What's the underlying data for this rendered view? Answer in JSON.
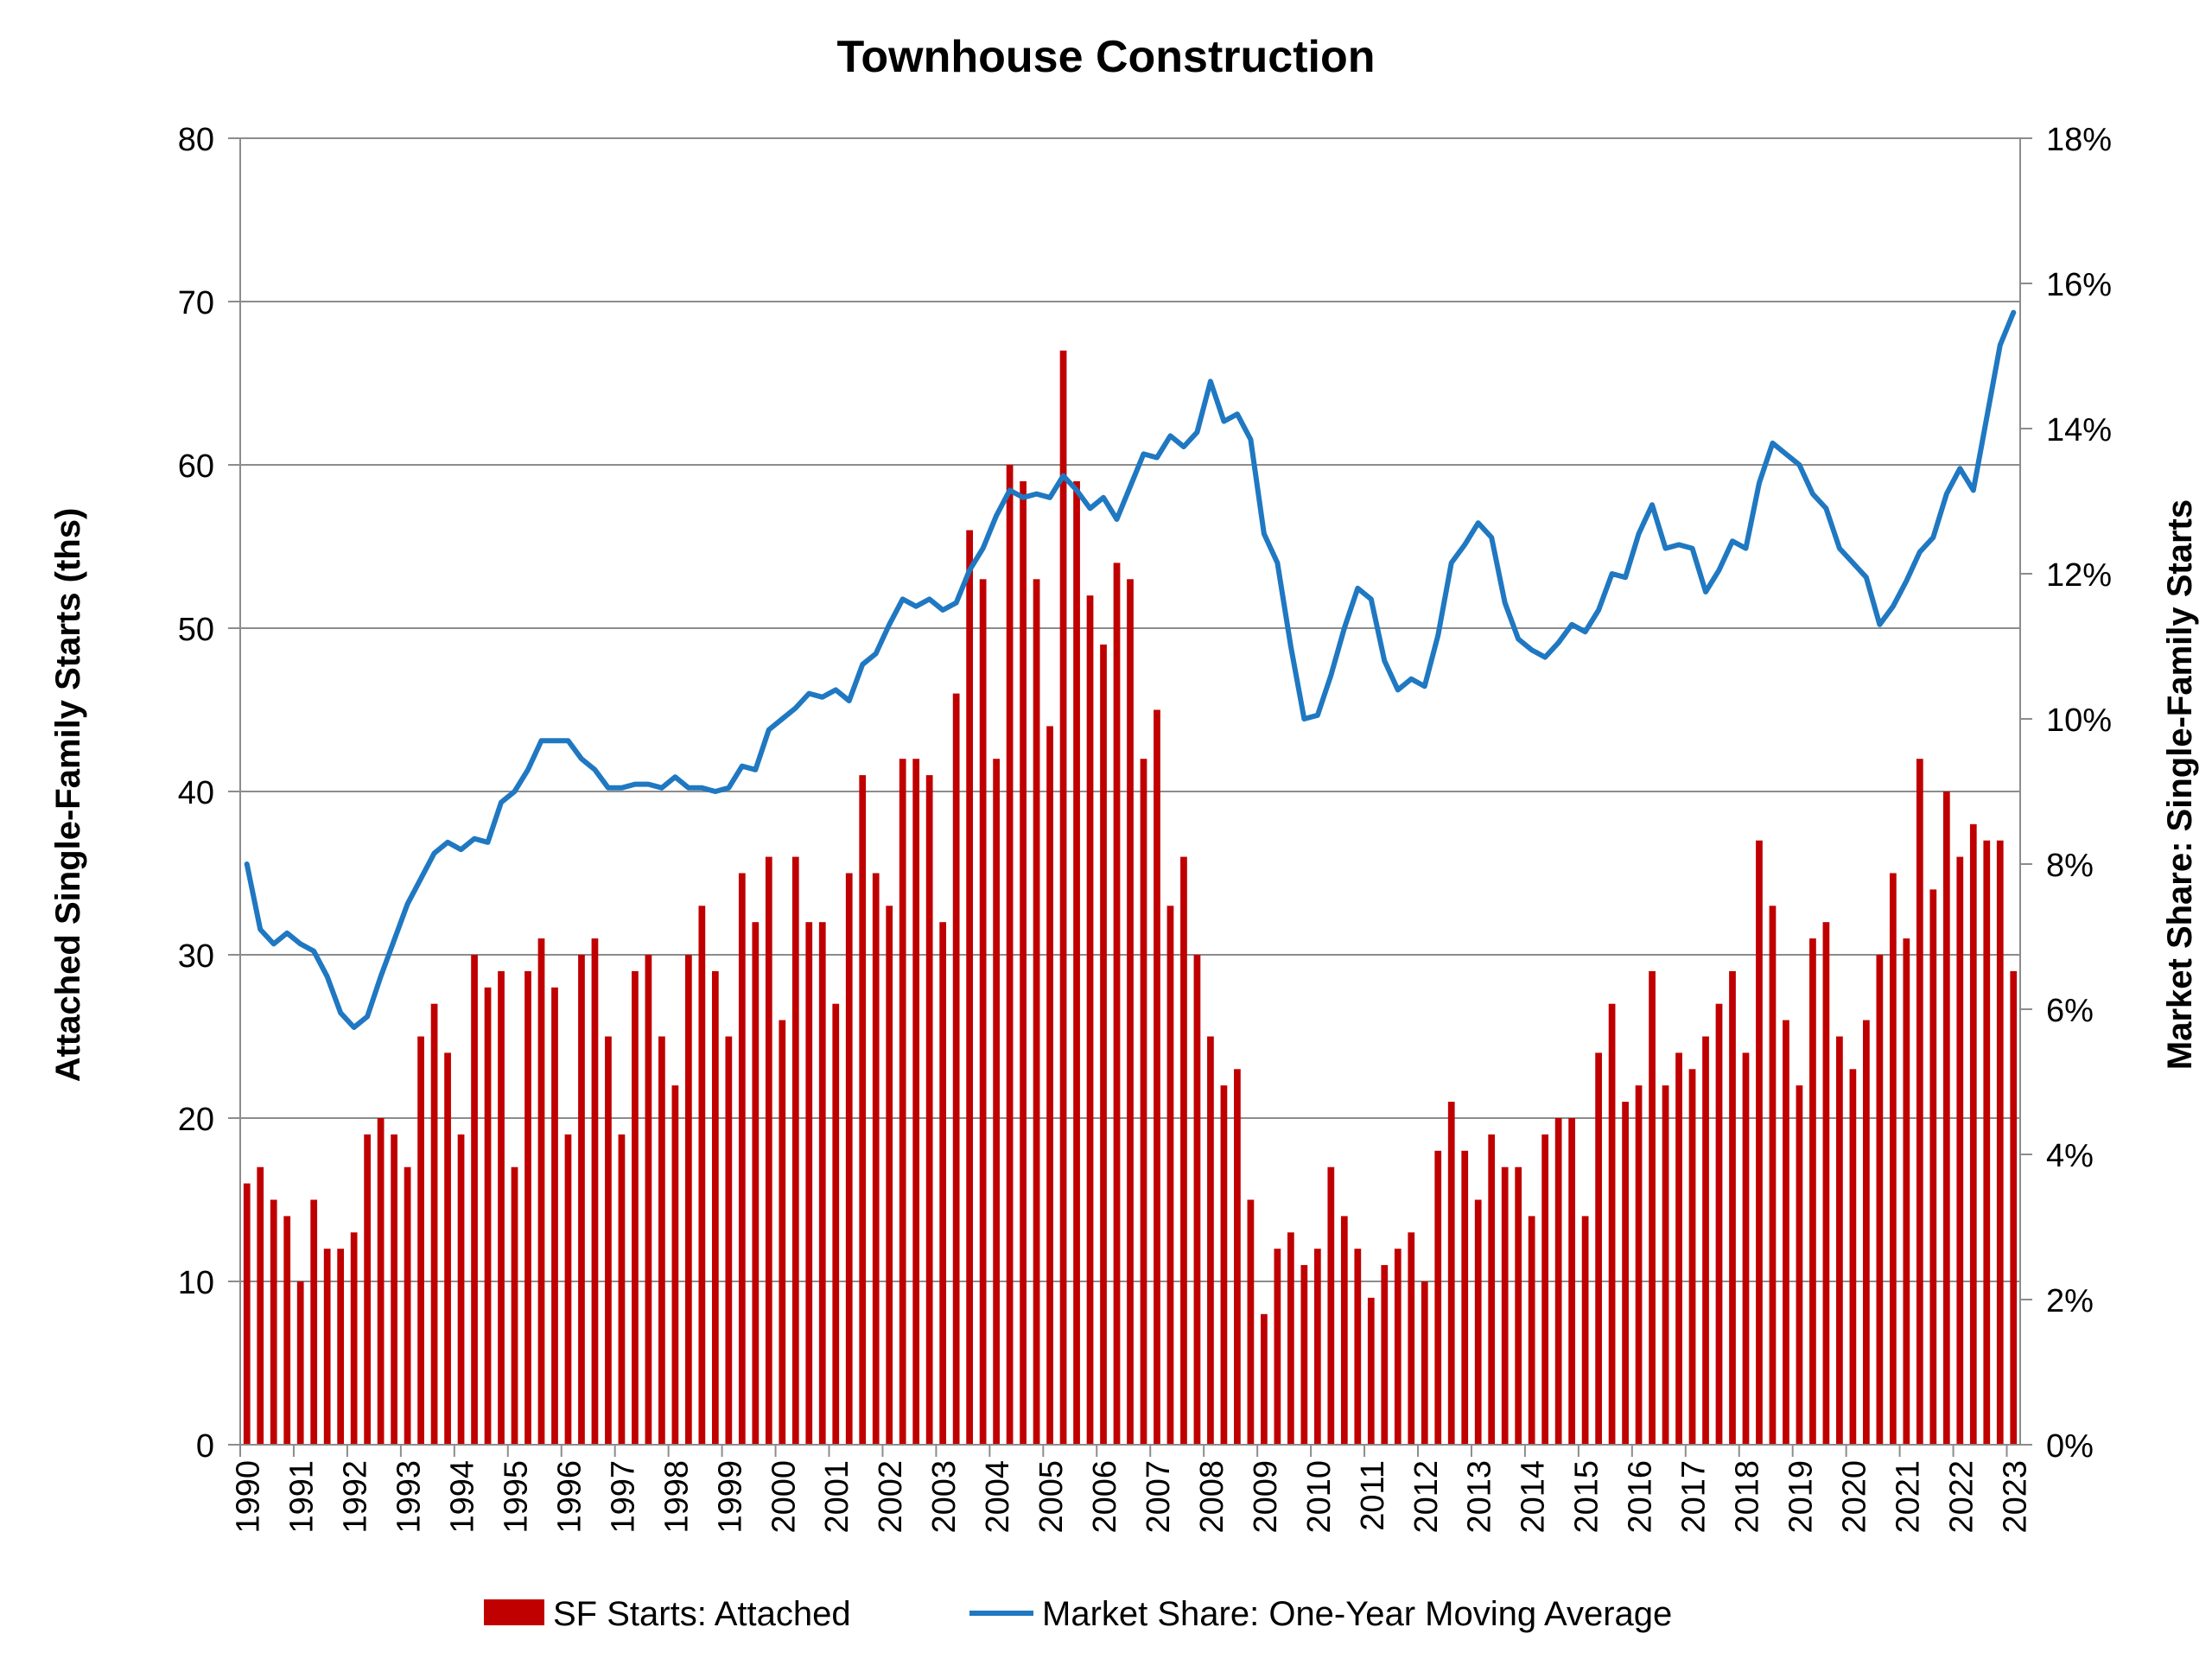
{
  "chart_data": {
    "type": "bar",
    "title": "Townhouse Construction",
    "ylabel": "Attached Single-Family Starts (ths)",
    "y2label": "Market Share: Single-Family Starts",
    "ylim": [
      0,
      80
    ],
    "y2lim": [
      0,
      18
    ],
    "yticks": [
      "0",
      "10",
      "20",
      "30",
      "40",
      "50",
      "60",
      "70",
      "80"
    ],
    "y2ticks": [
      "0%",
      "2%",
      "4%",
      "6%",
      "8%",
      "10%",
      "12%",
      "14%",
      "16%",
      "18%"
    ],
    "years": [
      "1990",
      "1991",
      "1992",
      "1993",
      "1994",
      "1995",
      "1996",
      "1997",
      "1998",
      "1999",
      "2000",
      "2001",
      "2002",
      "2003",
      "2004",
      "2005",
      "2006",
      "2007",
      "2008",
      "2009",
      "2010",
      "2011",
      "2012",
      "2013",
      "2014",
      "2015",
      "2016",
      "2017",
      "2018",
      "2019",
      "2020",
      "2021",
      "2022",
      "2023"
    ],
    "grid": true,
    "legend_position": "bottom",
    "colors": {
      "bars": "#C00000",
      "line": "#1F78C1",
      "grid": "#8C8C8C"
    },
    "series": [
      {
        "name": "SF Starts: Attached",
        "type": "bar",
        "axis": "left",
        "values": [
          16,
          17,
          15,
          14,
          10,
          15,
          12,
          12,
          13,
          19,
          20,
          19,
          17,
          25,
          27,
          24,
          19,
          30,
          28,
          29,
          17,
          29,
          31,
          28,
          19,
          30,
          31,
          25,
          19,
          29,
          30,
          25,
          22,
          30,
          33,
          29,
          25,
          35,
          32,
          36,
          26,
          36,
          32,
          32,
          27,
          35,
          41,
          35,
          33,
          42,
          42,
          41,
          32,
          46,
          56,
          53,
          42,
          60,
          59,
          53,
          44,
          67,
          59,
          52,
          49,
          54,
          53,
          42,
          45,
          33,
          36,
          30,
          25,
          22,
          23,
          15,
          8,
          12,
          13,
          11,
          12,
          17,
          14,
          12,
          9,
          11,
          12,
          13,
          10,
          18,
          21,
          18,
          15,
          19,
          17,
          17,
          14,
          19,
          20,
          20,
          14,
          24,
          27,
          21,
          22,
          29,
          22,
          24,
          23,
          25,
          27,
          29,
          24,
          37,
          33,
          26,
          22,
          31,
          32,
          25,
          23,
          26,
          30,
          35,
          31,
          42,
          34,
          40,
          36,
          38,
          37,
          37,
          29
        ]
      },
      {
        "name": "Market Share: One-Year Moving Average",
        "type": "line",
        "axis": "right",
        "values": [
          8.0,
          7.1,
          6.9,
          7.05,
          6.9,
          6.8,
          6.45,
          5.95,
          5.75,
          5.9,
          6.45,
          6.95,
          7.45,
          7.8,
          8.15,
          8.3,
          8.2,
          8.35,
          8.3,
          8.85,
          9.0,
          9.3,
          9.7,
          9.7,
          9.7,
          9.45,
          9.3,
          9.05,
          9.05,
          9.1,
          9.1,
          9.05,
          9.2,
          9.05,
          9.05,
          9.0,
          9.05,
          9.35,
          9.3,
          9.85,
          10.0,
          10.15,
          10.35,
          10.3,
          10.4,
          10.25,
          10.75,
          10.9,
          11.3,
          11.65,
          11.55,
          11.65,
          11.5,
          11.6,
          12.05,
          12.35,
          12.8,
          13.15,
          13.05,
          13.1,
          13.05,
          13.35,
          13.15,
          12.9,
          13.05,
          12.75,
          13.2,
          13.65,
          13.6,
          13.9,
          13.75,
          13.95,
          14.65,
          14.1,
          14.2,
          13.85,
          12.55,
          12.15,
          11.0,
          10.0,
          10.05,
          10.6,
          11.25,
          11.8,
          11.65,
          10.8,
          10.4,
          10.55,
          10.45,
          11.15,
          12.15,
          12.4,
          12.7,
          12.5,
          11.6,
          11.1,
          10.95,
          10.85,
          11.05,
          11.3,
          11.2,
          11.5,
          12.0,
          11.95,
          12.55,
          12.95,
          12.35,
          12.4,
          12.35,
          11.75,
          12.05,
          12.45,
          12.35,
          13.25,
          13.8,
          13.65,
          13.5,
          13.1,
          12.9,
          12.35,
          12.15,
          11.95,
          11.3,
          11.55,
          11.9,
          12.3,
          12.5,
          13.1,
          13.45,
          13.15,
          14.15,
          15.15,
          15.6
        ]
      }
    ]
  }
}
